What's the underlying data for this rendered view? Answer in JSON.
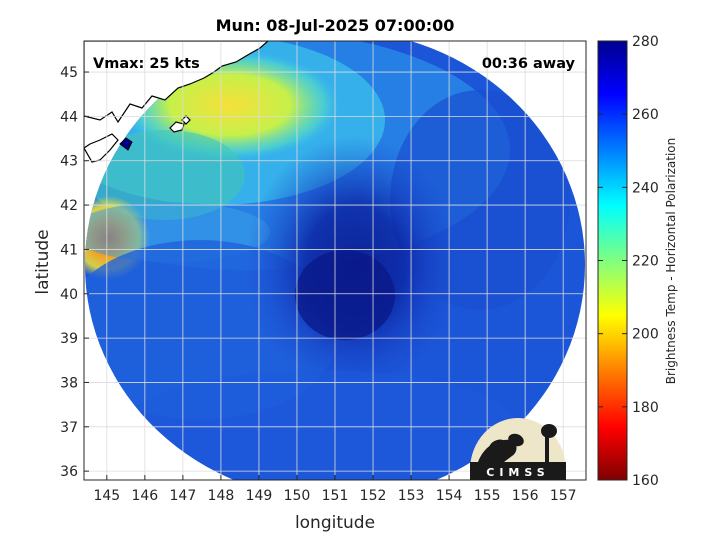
{
  "title": "Mun: 08-Jul-2025 07:00:00",
  "overlay": {
    "vmax": "Vmax: 25 kts",
    "time_away": "00:36 away"
  },
  "axes": {
    "xlabel": "longitude",
    "ylabel": "latitude",
    "xticks": [
      "145",
      "146",
      "147",
      "148",
      "149",
      "150",
      "151",
      "152",
      "153",
      "154",
      "155",
      "156",
      "157"
    ],
    "yticks": [
      "36",
      "37",
      "38",
      "39",
      "40",
      "41",
      "42",
      "43",
      "44",
      "45"
    ],
    "xlim": [
      144.4,
      157.6
    ],
    "ylim": [
      35.8,
      45.7
    ],
    "grid": true
  },
  "colorbar": {
    "label": "Brightness Temp - Horizontal Polarization",
    "ticks": [
      "280",
      "260",
      "240",
      "220",
      "200",
      "180",
      "160"
    ],
    "range": [
      160,
      280
    ],
    "colormap": "jet"
  },
  "logo": {
    "text": "CIMSS"
  },
  "chart_data": {
    "type": "heatmap",
    "title": "Mun: 08-Jul-2025 07:00:00",
    "xlabel": "longitude",
    "ylabel": "latitude",
    "xlim": [
      144.4,
      157.6
    ],
    "ylim": [
      35.8,
      45.7
    ],
    "swath_center": [
      151.0,
      40.4
    ],
    "coldest_region_center": [
      151.0,
      39.8
    ],
    "warm_region_center": [
      144.9,
      41.1
    ],
    "values_min": 160,
    "values_max": 280,
    "annotations": [
      "Vmax: 25 kts",
      "00:36 away"
    ]
  },
  "colors": {
    "jet": [
      "#00008f",
      "#0000ff",
      "#0080ff",
      "#00ffff",
      "#80ff80",
      "#ffff00",
      "#ff8000",
      "#ff0000",
      "#800000"
    ],
    "grid": "#dcdcdc",
    "axis": "#262626",
    "logo_bg": "#eee6c8",
    "logo_dark": "#1a1a1a"
  }
}
